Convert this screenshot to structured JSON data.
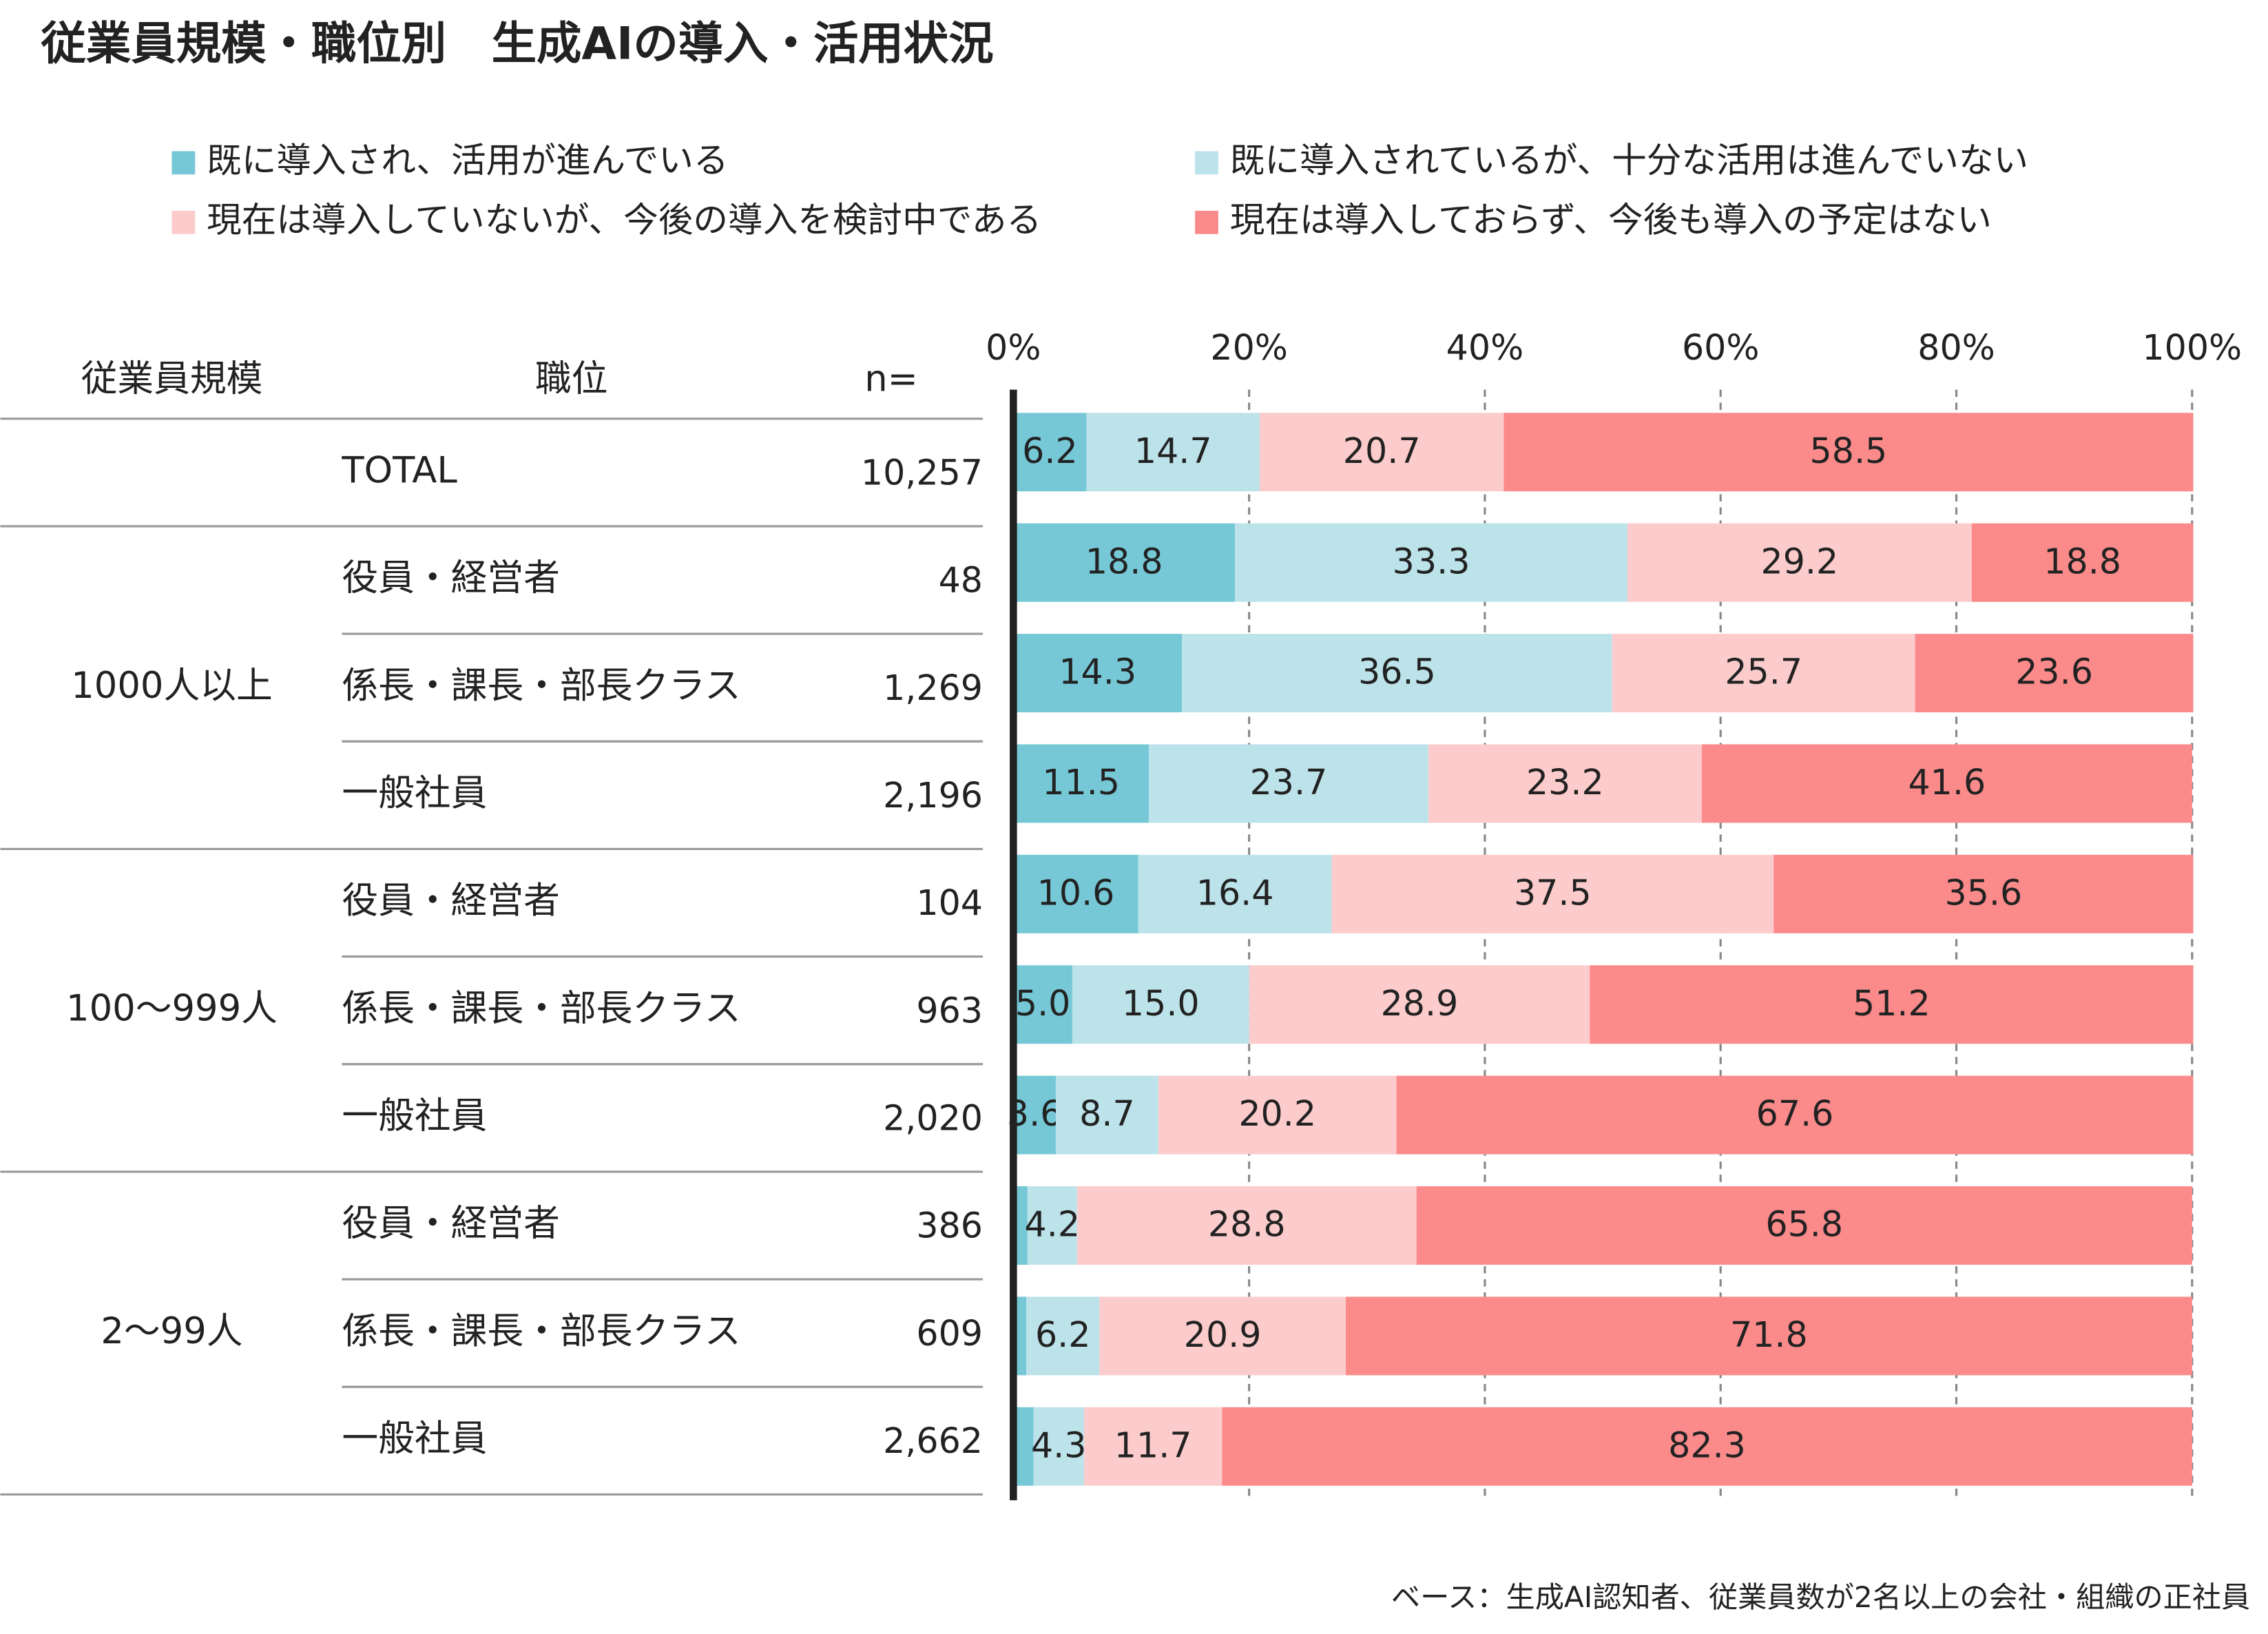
{
  "chart_data": {
    "type": "stacked_bar_horizontal",
    "title": "従業員規模・職位別　生成AIの導入・活用状況",
    "columns": [
      "従業員規模",
      "職位",
      "n="
    ],
    "groups": [
      null,
      "1000人以上",
      "1000人以上",
      "1000人以上",
      "100〜999人",
      "100〜999人",
      "100〜999人",
      "2〜99人",
      "2〜99人",
      "2〜99人"
    ],
    "categories": [
      "TOTAL",
      "役員・経営者",
      "係長・課長・部長クラス",
      "一般社員",
      "役員・経営者",
      "係長・課長・部長クラス",
      "一般社員",
      "役員・経営者",
      "係長・課長・部長クラス",
      "一般社員"
    ],
    "n": [
      "10,257",
      "48",
      "1,269",
      "2,196",
      "104",
      "963",
      "2,020",
      "386",
      "609",
      "2,662"
    ],
    "series": [
      {
        "name": "既に導入され、活用が進んでいる",
        "color": "#76c8d6",
        "label_color": "#ffffff",
        "values": [
          6.2,
          18.8,
          14.3,
          11.5,
          10.6,
          5.0,
          3.6,
          1.2,
          1.1,
          1.7
        ],
        "value_labels": [
          "6.2",
          "18.8",
          "14.3",
          "11.5",
          "10.6",
          "5.0",
          "3.6",
          null,
          null,
          null
        ]
      },
      {
        "name": "既に導入されているが、十分な活用は進んでいない",
        "color": "#bde3ea",
        "label_color": "#333333",
        "values": [
          14.7,
          33.3,
          36.5,
          23.7,
          16.4,
          15.0,
          8.7,
          4.2,
          6.2,
          4.3
        ],
        "value_labels": [
          "14.7",
          "33.3",
          "36.5",
          "23.7",
          "16.4",
          "15.0",
          "8.7",
          "4.2",
          "6.2",
          "4.3"
        ]
      },
      {
        "name": "現在は導入していないが、今後の導入を検討中である",
        "color": "#fccccc",
        "label_color": "#333333",
        "values": [
          20.7,
          29.2,
          25.7,
          23.2,
          37.5,
          28.9,
          20.2,
          28.8,
          20.9,
          11.7
        ],
        "value_labels": [
          "20.7",
          "29.2",
          "25.7",
          "23.2",
          "37.5",
          "28.9",
          "20.2",
          "28.8",
          "20.9",
          "11.7"
        ]
      },
      {
        "name": "現在は導入しておらず、今後も導入の予定はない",
        "color": "#fb8b8b",
        "label_color": "#333333",
        "values": [
          58.5,
          18.8,
          23.6,
          41.6,
          35.6,
          51.2,
          67.6,
          65.8,
          71.8,
          82.3
        ],
        "value_labels": [
          "58.5",
          "18.8",
          "23.6",
          "41.6",
          "35.6",
          "51.2",
          "67.6",
          "65.8",
          "71.8",
          "82.3"
        ]
      }
    ],
    "xlim": [
      0,
      100
    ],
    "xticks": [
      {
        "value": 0,
        "label": "0%"
      },
      {
        "value": 20,
        "label": "20%"
      },
      {
        "value": 40,
        "label": "40%"
      },
      {
        "value": 60,
        "label": "60%"
      },
      {
        "value": 80,
        "label": "80%"
      },
      {
        "value": 100,
        "label": "100%"
      }
    ],
    "grid": true,
    "note": "ベース：生成AI認知者、従業員数が2名以上の会社・組織の正社員"
  }
}
